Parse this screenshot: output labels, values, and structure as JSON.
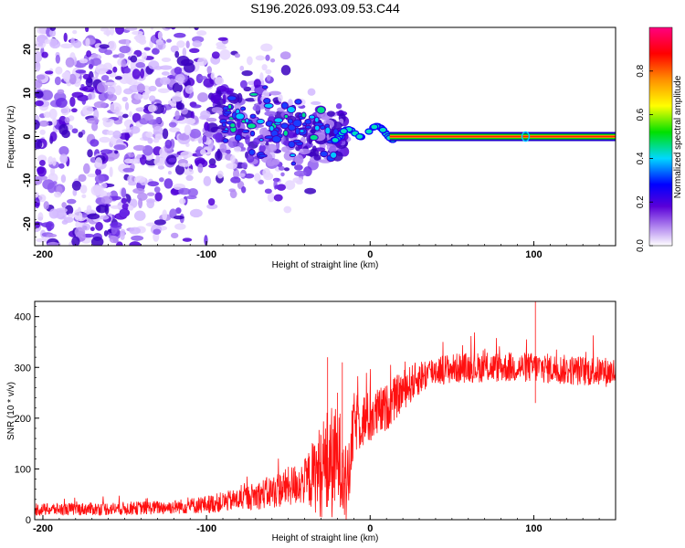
{
  "title": "S196.2026.093.09.53.C44",
  "chart_data": [
    {
      "type": "heatmap",
      "name": "spectrogram",
      "xlabel": "Height of straight line (km)",
      "ylabel": "Frequency (Hz)",
      "xlim": [
        -205,
        150
      ],
      "ylim": [
        -25,
        25
      ],
      "xticks": [
        -200,
        -100,
        0,
        100
      ],
      "xtick_labels": [
        "-200",
        "-100",
        "0",
        "100"
      ],
      "yticks": [
        -20,
        -10,
        0,
        10,
        20
      ],
      "ytick_labels": [
        "-20",
        "-10",
        "0",
        "10",
        "20"
      ],
      "colorbar": {
        "label": "Normalized spectral amplitude",
        "range": [
          0,
          1
        ],
        "ticks": [
          0.0,
          0.2,
          0.4,
          0.6,
          0.8
        ],
        "tick_labels": [
          "0.0",
          "0.2",
          "0.4",
          "0.6",
          "0.8"
        ],
        "colors": [
          "#ffffff",
          "#6a00c8",
          "#0000ff",
          "#00c8ff",
          "#00e000",
          "#ffff00",
          "#ff8000",
          "#ff0000",
          "#ff0080"
        ]
      },
      "description_points": [
        {
          "x": -200,
          "spread_hz": 25,
          "amplitude": 0.1
        },
        {
          "x": -120,
          "center_hz": 7,
          "spread_hz": 8,
          "amplitude": 0.15
        },
        {
          "x": -60,
          "center_hz": 2,
          "spread_hz": 8,
          "amplitude": 0.2
        },
        {
          "x": -20,
          "center_hz": 0,
          "spread_hz": 3,
          "amplitude": 0.3
        },
        {
          "x": 0,
          "center_hz": 1.5,
          "spread_hz": 1,
          "amplitude": 0.35
        },
        {
          "x": 20,
          "center_hz": 0,
          "spread_hz": 0.5,
          "amplitude": 0.9
        },
        {
          "x": 150,
          "center_hz": 0,
          "spread_hz": 0.5,
          "amplitude": 0.9
        }
      ]
    },
    {
      "type": "line",
      "name": "snr",
      "xlabel": "Height of straight line (km)",
      "ylabel": "SNR (10 * v/v)",
      "xlim": [
        -205,
        150
      ],
      "ylim": [
        0,
        430
      ],
      "xticks": [
        -200,
        -100,
        0,
        100
      ],
      "xtick_labels": [
        "-200",
        "-100",
        "0",
        "100"
      ],
      "yticks": [
        0,
        100,
        200,
        300,
        400
      ],
      "ytick_labels": [
        "0",
        "100",
        "200",
        "300",
        "400"
      ],
      "color": "#ff1010",
      "trend": {
        "x": [
          -205,
          -150,
          -120,
          -100,
          -80,
          -60,
          -40,
          -25,
          -18,
          -14,
          -10,
          0,
          10,
          20,
          30,
          40,
          60,
          80,
          100,
          120,
          150
        ],
        "y": [
          20,
          22,
          25,
          30,
          40,
          55,
          75,
          110,
          120,
          50,
          190,
          200,
          220,
          255,
          280,
          295,
          300,
          300,
          300,
          295,
          290
        ]
      },
      "noise_amplitude": {
        "x": [
          -205,
          -120,
          -80,
          -40,
          -25,
          -14,
          -10,
          20,
          40,
          150
        ],
        "y": [
          12,
          14,
          22,
          45,
          120,
          80,
          60,
          40,
          30,
          30
        ]
      },
      "spikes": [
        {
          "x": -26,
          "y": 320
        },
        {
          "x": -20,
          "y": 250
        },
        {
          "x": -17,
          "y": 310
        },
        {
          "x": 101,
          "y": 430
        },
        {
          "x": 101,
          "y": 230
        }
      ]
    }
  ]
}
